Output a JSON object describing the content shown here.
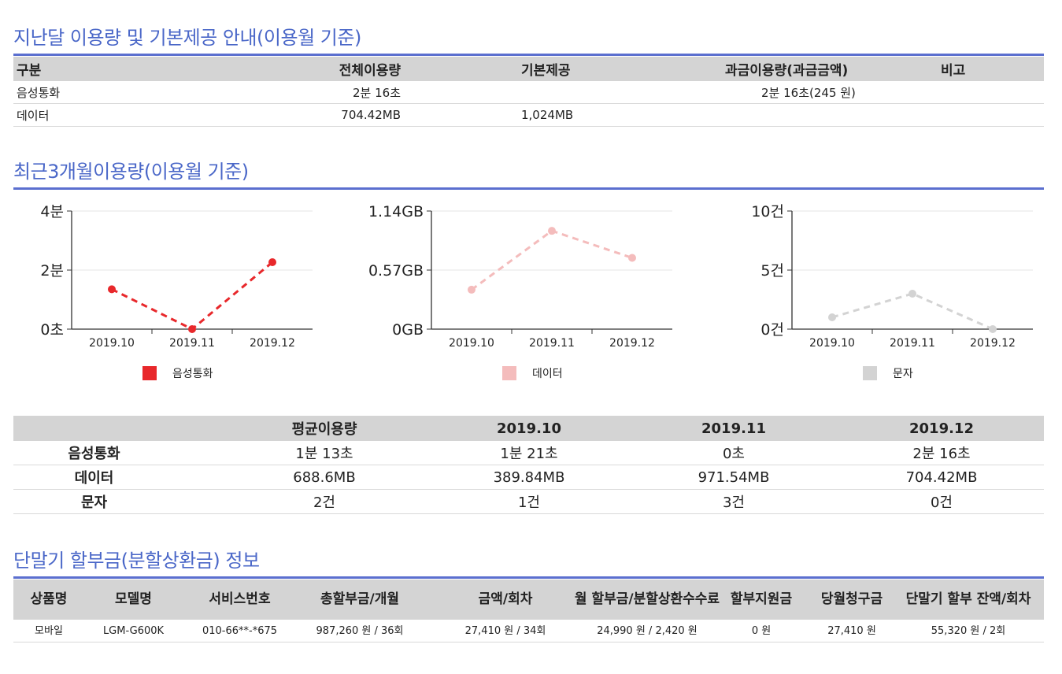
{
  "section1": {
    "title": "지난달 이용량 및 기본제공 안내(이용월 기준)",
    "headers": [
      "구분",
      "전체이용량",
      "기본제공",
      "과금이용량(과금금액)",
      "비고"
    ],
    "rows": [
      [
        "음성통화",
        "2분 16초",
        "",
        "2분 16초(245 원)",
        ""
      ],
      [
        "데이터",
        "704.42MB",
        "1,024MB",
        "",
        ""
      ]
    ]
  },
  "section2": {
    "title": "최근3개월이용량(이용월 기준)"
  },
  "chart_data": [
    {
      "type": "line",
      "categories": [
        "2019.10",
        "2019.11",
        "2019.12"
      ],
      "series": [
        {
          "name": "음성통화",
          "values": [
            81,
            0,
            136
          ],
          "color": "#e8282b"
        }
      ],
      "y_unit": "seconds",
      "ylim": [
        0,
        240
      ],
      "y_ticks": [
        {
          "value": 0,
          "label": "0초"
        },
        {
          "value": 120,
          "label": "2분"
        },
        {
          "value": 240,
          "label": "4분"
        }
      ],
      "line_style": "dashed",
      "legend_placement": "bottom"
    },
    {
      "type": "line",
      "categories": [
        "2019.10",
        "2019.11",
        "2019.12"
      ],
      "series": [
        {
          "name": "데이터",
          "values": [
            389.84,
            971.54,
            704.42
          ],
          "color": "#f4bcbc"
        }
      ],
      "y_unit": "MB",
      "ylim": [
        0,
        1167.36
      ],
      "y_ticks": [
        {
          "value": 0,
          "label": "0GB"
        },
        {
          "value": 583.68,
          "label": "0.57GB"
        },
        {
          "value": 1167.36,
          "label": "1.14GB"
        }
      ],
      "line_style": "dashed",
      "legend_placement": "bottom"
    },
    {
      "type": "line",
      "categories": [
        "2019.10",
        "2019.11",
        "2019.12"
      ],
      "series": [
        {
          "name": "문자",
          "values": [
            1,
            3,
            0
          ],
          "color": "#d3d3d3"
        }
      ],
      "y_unit": "건",
      "ylim": [
        0,
        10
      ],
      "y_ticks": [
        {
          "value": 0,
          "label": "0건"
        },
        {
          "value": 5,
          "label": "5건"
        },
        {
          "value": 10,
          "label": "10건"
        }
      ],
      "line_style": "dashed",
      "legend_placement": "bottom"
    }
  ],
  "usage_table": {
    "headers": [
      "",
      "평균이용량",
      "2019.10",
      "2019.11",
      "2019.12"
    ],
    "rows": [
      [
        "음성통화",
        "1분 13초",
        "1분 21초",
        "0초",
        "2분 16초"
      ],
      [
        "데이터",
        "688.6MB",
        "389.84MB",
        "971.54MB",
        "704.42MB"
      ],
      [
        "문자",
        "2건",
        "1건",
        "3건",
        "0건"
      ]
    ]
  },
  "section3": {
    "title": "단말기 할부금(분할상환금) 정보",
    "headers": [
      "상품명",
      "모델명",
      "서비스번호",
      "총할부금/개월",
      "금액/회차",
      "월 할부금/분할상환수수료",
      "할부지원금",
      "당월청구금",
      "단말기 할부 잔액/회차"
    ],
    "rows": [
      [
        "모바일",
        "LGM-G600K",
        "010-66**-*675",
        "987,260 원 / 36회",
        "27,410 원 / 34회",
        "24,990 원 / 2,420 원",
        "0 원",
        "27,410 원",
        "55,320 원 / 2회"
      ]
    ]
  },
  "colors": {
    "accent": "#4a67c8",
    "rule": "#5b6fcf",
    "header_bg": "#d4d4d4"
  }
}
